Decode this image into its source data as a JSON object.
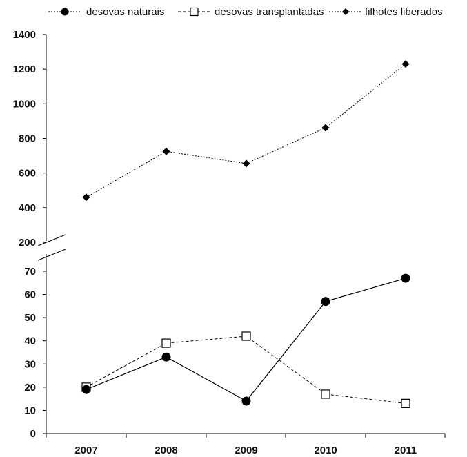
{
  "chart_data": {
    "type": "line",
    "title": "",
    "xlabel": "",
    "ylabel": "",
    "categories": [
      "2007",
      "2008",
      "2009",
      "2010",
      "2011"
    ],
    "broken_y_axis": true,
    "upper_panel": {
      "ylim": [
        200,
        1400
      ],
      "y_ticks": [
        "1400",
        "1200",
        "1000",
        "800",
        "600",
        "400",
        "200"
      ],
      "y_tick_values": [
        1400,
        1200,
        1000,
        800,
        600,
        400,
        200
      ],
      "series": [
        {
          "name": "filhotes liberados",
          "x_index": [
            0,
            1,
            2,
            3,
            4
          ],
          "values": [
            460,
            725,
            655,
            862,
            1230
          ],
          "marker": "diamond",
          "line": "dotted",
          "color": "#000000"
        }
      ]
    },
    "lower_panel": {
      "ylim": [
        0,
        70
      ],
      "y_ticks": [
        "70",
        "60",
        "50",
        "40",
        "30",
        "20",
        "10",
        "0"
      ],
      "y_tick_values": [
        70,
        60,
        50,
        40,
        30,
        20,
        10,
        0
      ],
      "series": [
        {
          "name": "desovas naturais",
          "x_index": [
            0,
            1,
            2,
            3,
            4
          ],
          "values": [
            19,
            33,
            14,
            57,
            67
          ],
          "marker": "filled-circle",
          "line": "solid",
          "color": "#000000"
        },
        {
          "name": "desovas transplantadas",
          "x_index": [
            0,
            1,
            2,
            3,
            4
          ],
          "values": [
            20,
            39,
            42,
            17,
            13
          ],
          "marker": "open-square",
          "line": "dashed",
          "color": "#000000"
        }
      ]
    },
    "legend": {
      "position": "top",
      "entries": [
        "desovas naturais",
        "desovas transplantadas",
        "filhotes liberados"
      ]
    },
    "grid": false
  }
}
